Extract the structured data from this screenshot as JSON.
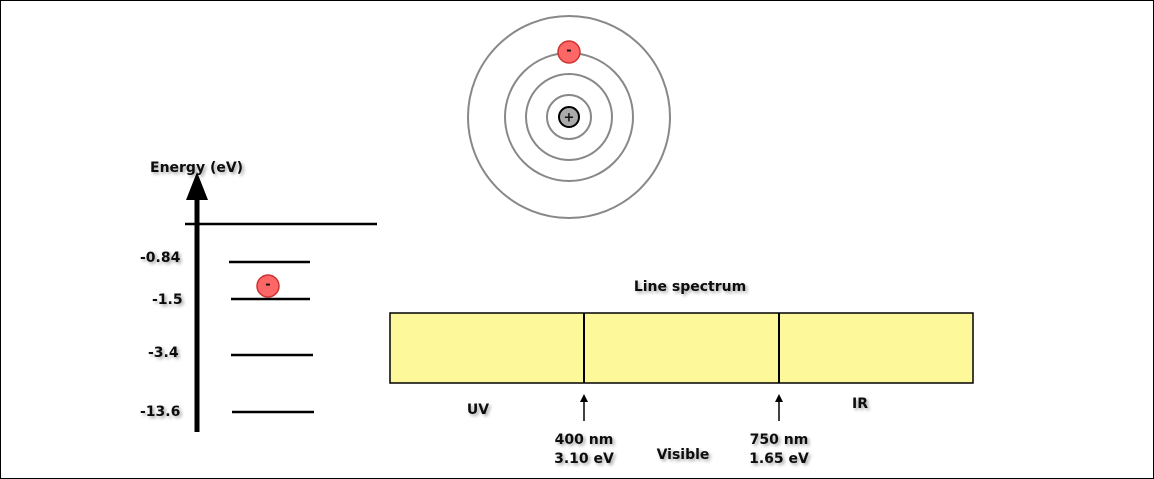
{
  "atom": {
    "nucleus_symbol": "+",
    "electron_symbol": "-"
  },
  "energy_diagram": {
    "axis_label": "Energy (eV)",
    "levels": [
      "-0.84",
      "-1.5",
      "-3.4",
      "-13.6"
    ]
  },
  "spectrum": {
    "title": "Line spectrum",
    "regions": [
      "UV",
      "Visible",
      "IR"
    ],
    "markers": [
      {
        "wavelength": "400 nm",
        "energy": "3.10 eV"
      },
      {
        "wavelength": "750 nm",
        "energy": "1.65 eV"
      }
    ]
  }
}
